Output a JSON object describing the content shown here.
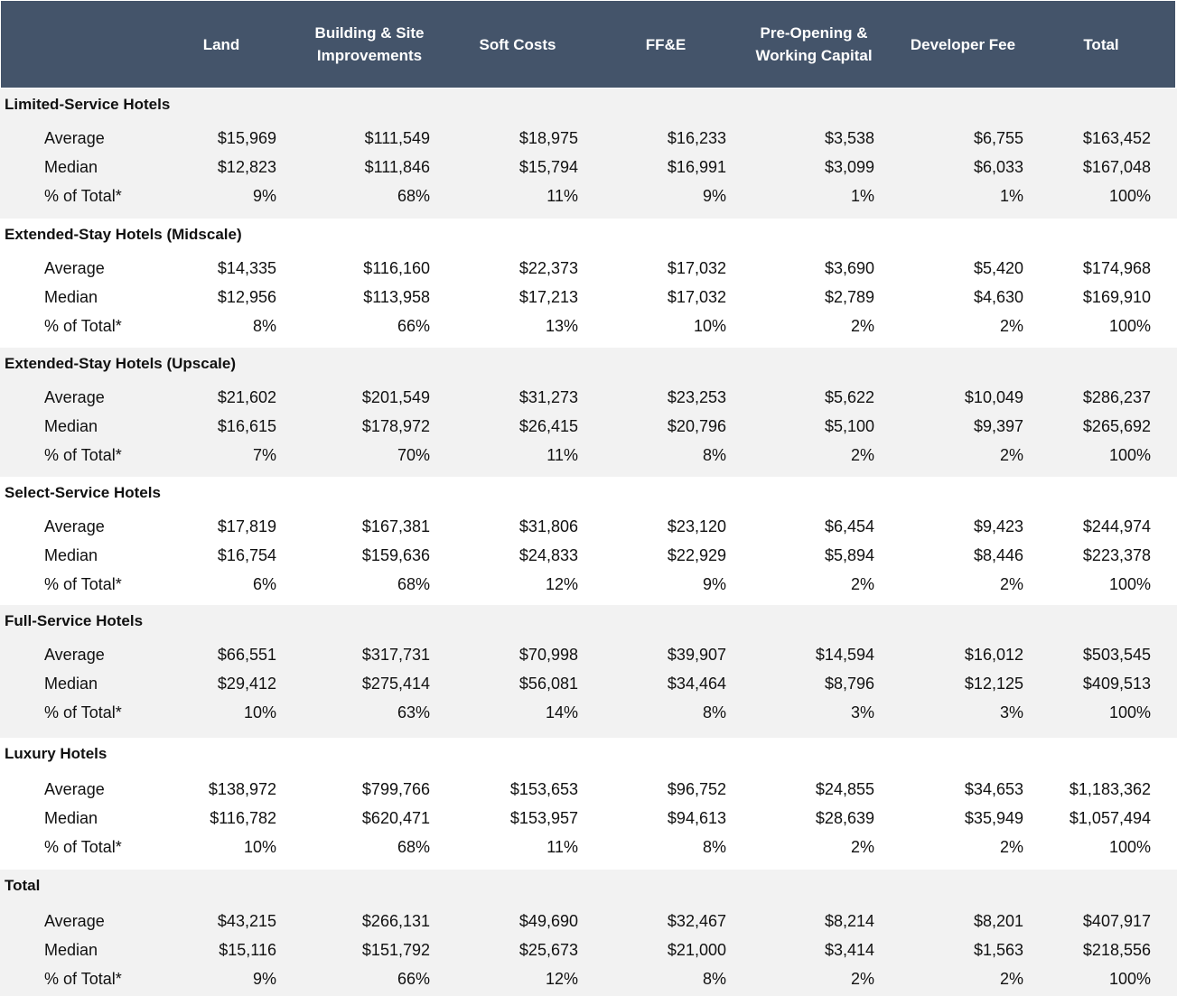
{
  "header": {
    "columns": [
      "Land",
      "Building & Site\nImprovements",
      "Soft Costs",
      "FF&E",
      "Pre-Opening &\nWorking Capital",
      "Developer Fee",
      "Total"
    ]
  },
  "groups": [
    {
      "title": "Limited-Service Hotels",
      "rows": [
        {
          "label": "Average",
          "values": [
            "$15,969",
            "$111,549",
            "$18,975",
            "$16,233",
            "$3,538",
            "$6,755",
            "$163,452"
          ]
        },
        {
          "label": "Median",
          "values": [
            "$12,823",
            "$111,846",
            "$15,794",
            "$16,991",
            "$3,099",
            "$6,033",
            "$167,048"
          ]
        },
        {
          "label": "% of Total*",
          "values": [
            "9%",
            "68%",
            "11%",
            "9%",
            "1%",
            "1%",
            "100%"
          ]
        }
      ]
    },
    {
      "title": "Extended-Stay Hotels (Midscale)",
      "rows": [
        {
          "label": "Average",
          "values": [
            "$14,335",
            "$116,160",
            "$22,373",
            "$17,032",
            "$3,690",
            "$5,420",
            "$174,968"
          ]
        },
        {
          "label": "Median",
          "values": [
            "$12,956",
            "$113,958",
            "$17,213",
            "$17,032",
            "$2,789",
            "$4,630",
            "$169,910"
          ]
        },
        {
          "label": "% of Total*",
          "values": [
            "8%",
            "66%",
            "13%",
            "10%",
            "2%",
            "2%",
            "100%"
          ]
        }
      ]
    },
    {
      "title": "Extended-Stay Hotels (Upscale)",
      "rows": [
        {
          "label": "Average",
          "values": [
            "$21,602",
            "$201,549",
            "$31,273",
            "$23,253",
            "$5,622",
            "$10,049",
            "$286,237"
          ]
        },
        {
          "label": "Median",
          "values": [
            "$16,615",
            "$178,972",
            "$26,415",
            "$20,796",
            "$5,100",
            "$9,397",
            "$265,692"
          ]
        },
        {
          "label": "% of Total*",
          "values": [
            "7%",
            "70%",
            "11%",
            "8%",
            "2%",
            "2%",
            "100%"
          ]
        }
      ]
    },
    {
      "title": "Select-Service Hotels",
      "rows": [
        {
          "label": "Average",
          "values": [
            "$17,819",
            "$167,381",
            "$31,806",
            "$23,120",
            "$6,454",
            "$9,423",
            "$244,974"
          ]
        },
        {
          "label": "Median",
          "values": [
            "$16,754",
            "$159,636",
            "$24,833",
            "$22,929",
            "$5,894",
            "$8,446",
            "$223,378"
          ]
        },
        {
          "label": "% of Total*",
          "values": [
            "6%",
            "68%",
            "12%",
            "9%",
            "2%",
            "2%",
            "100%"
          ]
        }
      ]
    },
    {
      "title": "Full-Service Hotels",
      "rows": [
        {
          "label": "Average",
          "values": [
            "$66,551",
            "$317,731",
            "$70,998",
            "$39,907",
            "$14,594",
            "$16,012",
            "$503,545"
          ]
        },
        {
          "label": "Median",
          "values": [
            "$29,412",
            "$275,414",
            "$56,081",
            "$34,464",
            "$8,796",
            "$12,125",
            "$409,513"
          ]
        },
        {
          "label": "% of Total*",
          "values": [
            "10%",
            "63%",
            "14%",
            "8%",
            "3%",
            "3%",
            "100%"
          ]
        }
      ]
    },
    {
      "title": "Luxury Hotels",
      "rows": [
        {
          "label": "Average",
          "values": [
            "$138,972",
            "$799,766",
            "$153,653",
            "$96,752",
            "$24,855",
            "$34,653",
            "$1,183,362"
          ]
        },
        {
          "label": "Median",
          "values": [
            "$116,782",
            "$620,471",
            "$153,957",
            "$94,613",
            "$28,639",
            "$35,949",
            "$1,057,494"
          ]
        },
        {
          "label": "% of Total*",
          "values": [
            "10%",
            "68%",
            "11%",
            "8%",
            "2%",
            "2%",
            "100%"
          ]
        }
      ]
    },
    {
      "title": "Total",
      "rows": [
        {
          "label": "Average",
          "values": [
            "$43,215",
            "$266,131",
            "$49,690",
            "$32,467",
            "$8,214",
            "$8,201",
            "$407,917"
          ]
        },
        {
          "label": "Median",
          "values": [
            "$15,116",
            "$151,792",
            "$25,673",
            "$21,000",
            "$3,414",
            "$1,563",
            "$218,556"
          ]
        },
        {
          "label": "% of Total*",
          "values": [
            "9%",
            "66%",
            "12%",
            "8%",
            "2%",
            "2%",
            "100%"
          ]
        }
      ]
    }
  ],
  "colors": {
    "header_bg": "#44546a",
    "header_text": "#ffffff",
    "band": "#f2f2f2"
  }
}
